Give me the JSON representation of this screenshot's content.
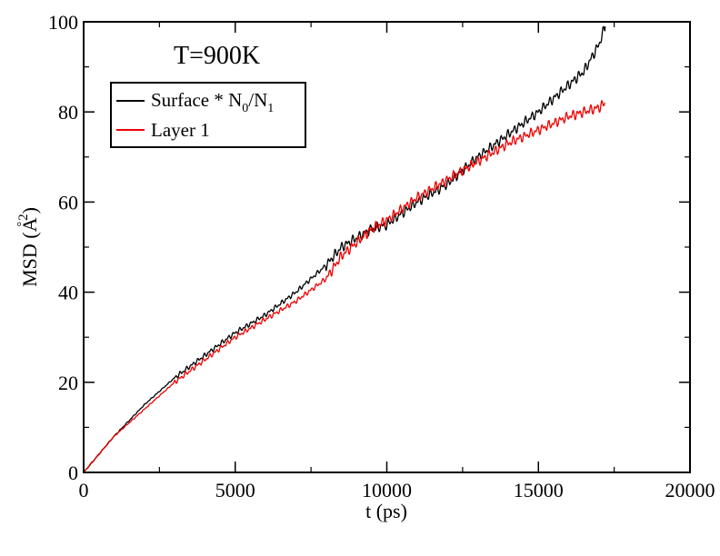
{
  "chart_data": {
    "type": "line",
    "title": "",
    "annotation": "T=900K",
    "xlabel": "t (ps)",
    "ylabel_parts": {
      "prefix": "MSD (",
      "unit": "A",
      "ring": "°",
      "sup": "2",
      "suffix": ")"
    },
    "xlim": [
      0,
      20000
    ],
    "ylim": [
      0,
      100
    ],
    "xticks": [
      0,
      5000,
      10000,
      15000,
      20000
    ],
    "yticks": [
      0,
      20,
      40,
      60,
      80,
      100
    ],
    "grid": false,
    "legend_placement": "top-left",
    "series": [
      {
        "name": "Surface * N0/N1",
        "legend": {
          "base": "Surface * N",
          "sub1": "0",
          "mid": "/N",
          "sub2": "1"
        },
        "color": "#000000",
        "x": [
          0,
          1000,
          2000,
          3000,
          4000,
          5000,
          6000,
          7000,
          8000,
          8500,
          9000,
          9500,
          10000,
          11000,
          12000,
          13000,
          14000,
          15000,
          16000,
          16500,
          17000,
          17200
        ],
        "y": [
          0,
          8,
          15,
          21,
          26,
          31,
          35,
          40,
          46,
          50,
          52,
          54,
          55,
          60,
          64,
          70,
          75,
          80,
          86,
          89,
          95,
          99
        ]
      },
      {
        "name": "Layer 1",
        "legend": {
          "base": "Layer 1"
        },
        "color": "#ee0000",
        "x": [
          0,
          1000,
          2000,
          3000,
          4000,
          5000,
          6000,
          7000,
          8000,
          8500,
          9000,
          9500,
          10000,
          11000,
          12000,
          13000,
          14000,
          15000,
          16000,
          16500,
          17000,
          17200
        ],
        "y": [
          0,
          8,
          14,
          20,
          25,
          30,
          34,
          38,
          43,
          48,
          51,
          54,
          56,
          61,
          65,
          69,
          73,
          76,
          79,
          80,
          81,
          82
        ]
      }
    ]
  }
}
